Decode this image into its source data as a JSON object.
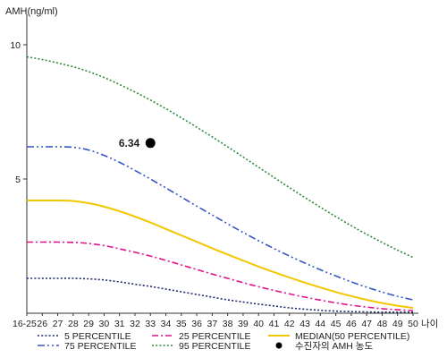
{
  "chart_data": {
    "type": "line",
    "ylabel": "AMH(ng/ml)",
    "xlabel": "나이",
    "ylim": [
      0,
      11
    ],
    "y_ticks": [
      5,
      10
    ],
    "categories": [
      "16-25",
      "26",
      "27",
      "28",
      "29",
      "30",
      "31",
      "32",
      "33",
      "34",
      "35",
      "36",
      "37",
      "38",
      "39",
      "40",
      "41",
      "42",
      "43",
      "44",
      "45",
      "46",
      "47",
      "48",
      "49",
      "50"
    ],
    "series": [
      {
        "name": "5 PERCENTILE",
        "color": "#1f2a6b",
        "style": "dotted",
        "values": [
          1.3,
          1.3,
          1.3,
          1.3,
          1.28,
          1.24,
          1.17,
          1.08,
          1.0,
          0.9,
          0.8,
          0.7,
          0.6,
          0.5,
          0.42,
          0.34,
          0.27,
          0.2,
          0.15,
          0.11,
          0.08,
          0.06,
          0.05,
          0.04,
          0.04,
          0.04
        ]
      },
      {
        "name": "25 PERCENTILE",
        "color": "#e0128c",
        "style": "dashdot",
        "values": [
          2.65,
          2.65,
          2.65,
          2.64,
          2.6,
          2.52,
          2.4,
          2.27,
          2.13,
          1.97,
          1.8,
          1.63,
          1.46,
          1.3,
          1.14,
          0.99,
          0.85,
          0.72,
          0.6,
          0.49,
          0.39,
          0.3,
          0.23,
          0.17,
          0.13,
          0.1
        ]
      },
      {
        "name": "MEDIAN(50 PERCENTILE)",
        "color": "#f2c700",
        "style": "solid",
        "values": [
          4.2,
          4.2,
          4.2,
          4.18,
          4.1,
          3.97,
          3.8,
          3.6,
          3.38,
          3.14,
          2.9,
          2.66,
          2.42,
          2.19,
          1.96,
          1.74,
          1.53,
          1.33,
          1.14,
          0.96,
          0.79,
          0.64,
          0.5,
          0.38,
          0.28,
          0.2
        ]
      },
      {
        "name": "75 PERCENTILE",
        "color": "#3556c4",
        "style": "dashdotdot",
        "values": [
          6.2,
          6.2,
          6.2,
          6.18,
          6.08,
          5.88,
          5.62,
          5.32,
          5.0,
          4.67,
          4.33,
          3.99,
          3.66,
          3.33,
          3.01,
          2.7,
          2.41,
          2.13,
          1.87,
          1.62,
          1.39,
          1.17,
          0.97,
          0.79,
          0.63,
          0.5
        ]
      },
      {
        "name": "95 PERCENTILE",
        "color": "#2e8b3a",
        "style": "dotted",
        "values": [
          9.55,
          9.45,
          9.32,
          9.18,
          9.0,
          8.78,
          8.52,
          8.24,
          7.94,
          7.62,
          7.28,
          6.93,
          6.57,
          6.2,
          5.82,
          5.44,
          5.06,
          4.68,
          4.31,
          3.95,
          3.6,
          3.26,
          2.94,
          2.64,
          2.35,
          2.08
        ]
      }
    ],
    "marker": {
      "name": "수진자의 AMH 농도",
      "x": "33",
      "y": 6.34,
      "label": "6.34",
      "color": "#000000"
    },
    "legend_position": "bottom",
    "grid": false
  }
}
